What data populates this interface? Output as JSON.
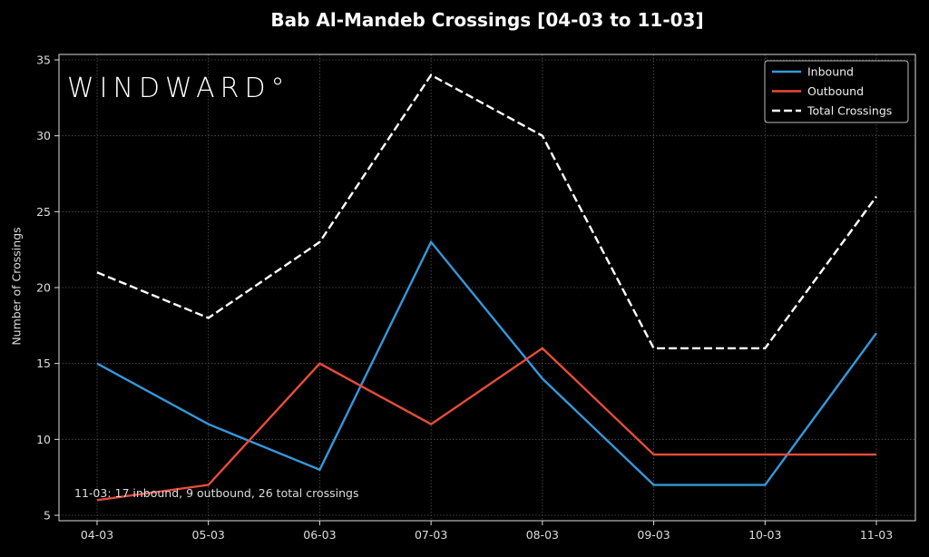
{
  "chart_data": {
    "type": "line",
    "title": "Bab Al-Mandeb Crossings [04-03 to 11-03]",
    "xlabel": "",
    "ylabel": "Number of Crossings",
    "categories": [
      "04-03",
      "05-03",
      "06-03",
      "07-03",
      "08-03",
      "09-03",
      "10-03",
      "11-03"
    ],
    "series": [
      {
        "name": "Inbound",
        "color": "#3498db",
        "style": "solid",
        "values": [
          15,
          11,
          8,
          23,
          14,
          7,
          7,
          17
        ]
      },
      {
        "name": "Outbound",
        "color": "#e74c3c",
        "style": "solid",
        "values": [
          6,
          7,
          15,
          11,
          16,
          9,
          9,
          9
        ]
      },
      {
        "name": "Total Crossings",
        "color": "#ffffff",
        "style": "dashed",
        "values": [
          21,
          18,
          23,
          34,
          30,
          16,
          16,
          26
        ]
      }
    ],
    "yticks": [
      5,
      10,
      15,
      20,
      25,
      30,
      35
    ],
    "ylim": [
      4.5,
      35.5
    ],
    "grid": true,
    "legend_position": "upper right",
    "annotation": "11-03: 17 inbound, 9 outbound, 26 total crossings",
    "watermark": "WINDWARD°"
  }
}
